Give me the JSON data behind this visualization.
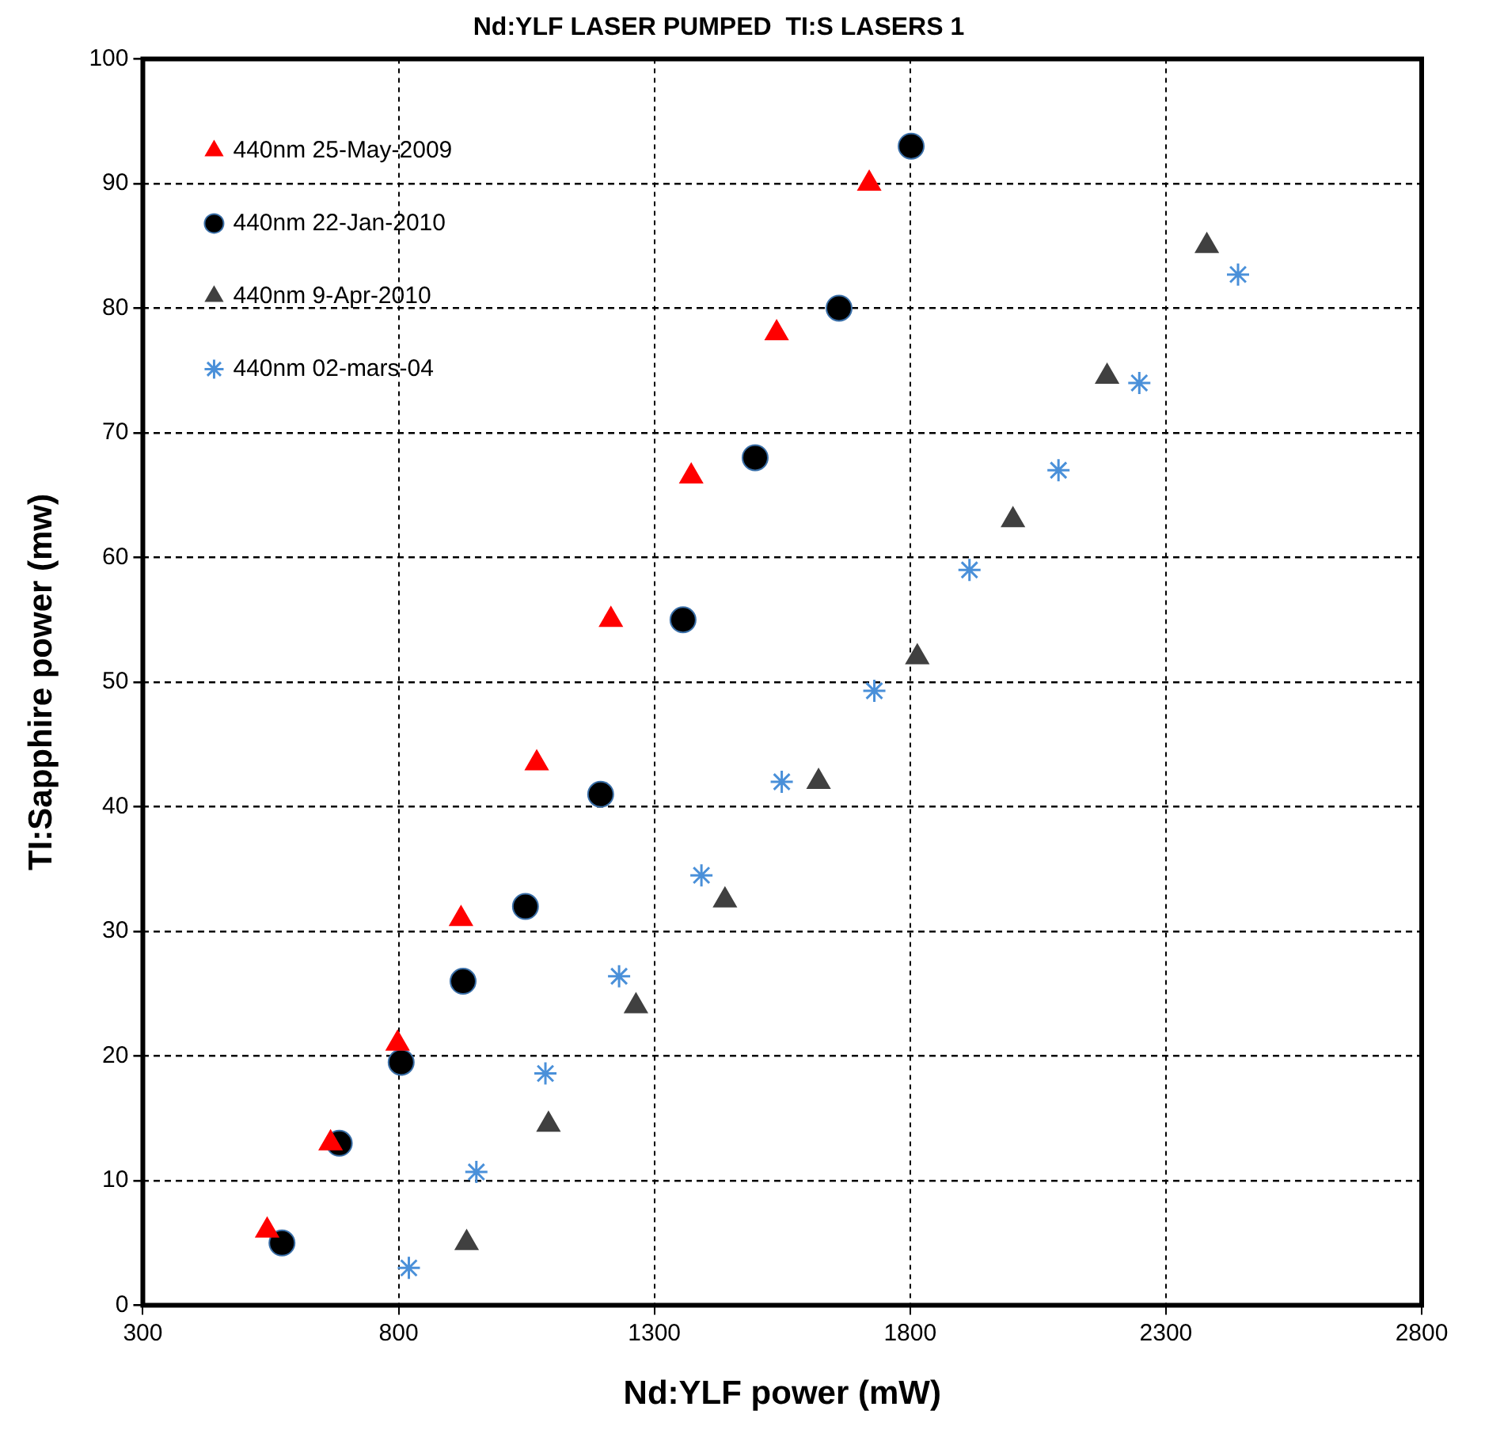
{
  "chart_data": {
    "type": "scatter",
    "title": "Nd:YLF LASER PUMPED  TI:S LASERS 1",
    "xlabel": "Nd:YLF power (mW)",
    "ylabel": "TI:Sapphire power (mw)",
    "xlim": [
      300,
      2800
    ],
    "xticks": [
      300,
      800,
      1300,
      1800,
      2300,
      2800
    ],
    "ylim": [
      0,
      100
    ],
    "yticks": [
      0,
      10,
      20,
      30,
      40,
      50,
      60,
      70,
      80,
      90,
      100
    ],
    "grid": true,
    "legend": "top left",
    "series": [
      {
        "name": "440nm 25-May-2009",
        "color": "#ff0000",
        "marker": "triangle",
        "x": [
          543,
          667,
          798,
          922,
          1070,
          1215,
          1372,
          1539,
          1720
        ],
        "values": [
          6,
          13,
          21,
          31,
          43.5,
          55,
          66.5,
          78,
          90
        ]
      },
      {
        "name": "440nm 22-Jan-2010",
        "color": "#000000",
        "marker": "circle",
        "x": [
          572,
          684,
          805,
          926,
          1048,
          1195,
          1356,
          1497,
          1661,
          1802
        ],
        "values": [
          5,
          13,
          19.5,
          26,
          32,
          41,
          55,
          68,
          80,
          93
        ]
      },
      {
        "name": "440nm 9-Apr-2010",
        "color": "#404040",
        "marker": "triangle",
        "x": [
          933,
          1093,
          1264,
          1438,
          1621,
          1814,
          2001,
          2185,
          2380
        ],
        "values": [
          5,
          14.5,
          24,
          32.5,
          42,
          52,
          63,
          74.5,
          85
        ]
      },
      {
        "name": "440nm 02-mars-04",
        "color": "#4a90d9",
        "marker": "cross",
        "x": [
          820,
          952,
          1087,
          1231,
          1392,
          1549,
          1730,
          1916,
          2090,
          2248,
          2441
        ],
        "values": [
          3,
          10.7,
          18.6,
          26.4,
          34.5,
          42,
          49.3,
          59,
          67,
          74,
          82.7
        ]
      }
    ]
  }
}
